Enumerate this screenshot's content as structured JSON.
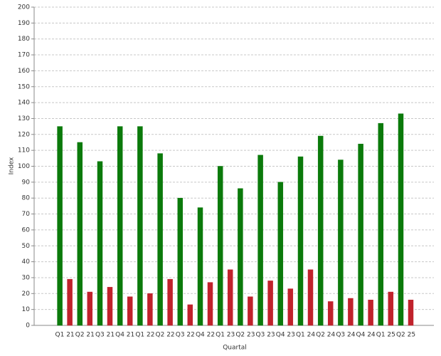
{
  "chart_data": {
    "type": "bar",
    "xlabel": "Quartal",
    "ylabel": "Index",
    "categories": [
      "Q1 21",
      "Q2 21",
      "Q3 21",
      "Q4 21",
      "Q1 22",
      "Q2 22",
      "Q3 22",
      "Q4 22",
      "Q1 23",
      "Q2 23",
      "Q3 23",
      "Q4 23",
      "Q1 24",
      "Q2 24",
      "Q3 24",
      "Q4 24",
      "Q1 25",
      "Q2 25"
    ],
    "series": [
      {
        "color": "#0b7a0b",
        "values": [
          125,
          115,
          103,
          125,
          125,
          108,
          80,
          74,
          100,
          86,
          107,
          90,
          106,
          119,
          104,
          114,
          127,
          133
        ]
      },
      {
        "color": "#c0222c",
        "values": [
          29,
          21,
          24,
          18,
          20,
          29,
          13,
          27,
          35,
          18,
          28,
          23,
          35,
          15,
          17,
          16,
          21,
          16
        ]
      }
    ],
    "ylim": [
      0,
      200
    ],
    "yticks": [
      0,
      10,
      20,
      30,
      40,
      50,
      60,
      70,
      80,
      90,
      100,
      110,
      120,
      130,
      140,
      150,
      160,
      170,
      180,
      190,
      200
    ],
    "grid": true
  }
}
